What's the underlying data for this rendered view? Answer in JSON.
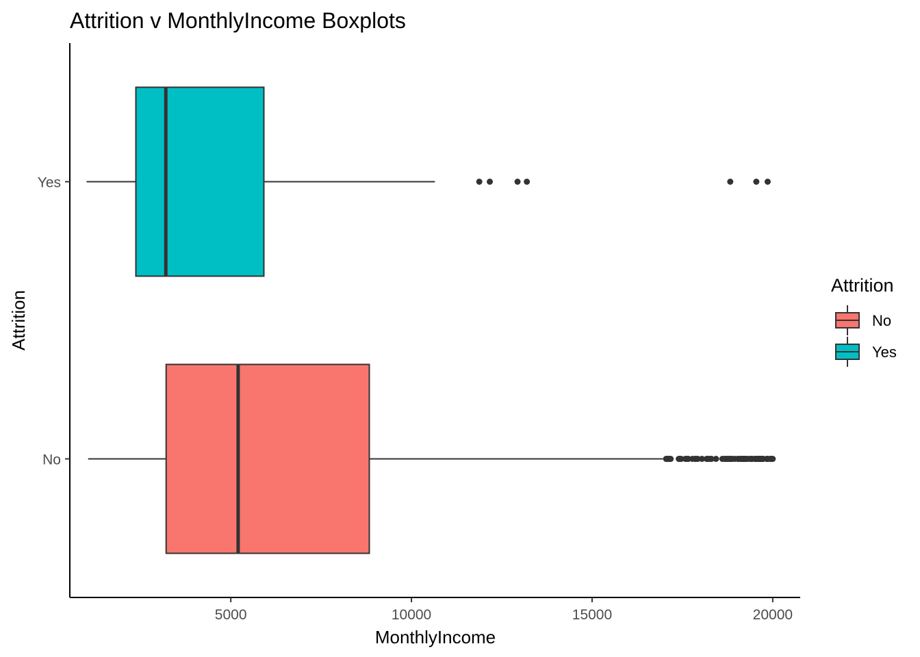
{
  "chart_data": {
    "type": "boxplot",
    "orientation": "horizontal",
    "title": "Attrition v MonthlyIncome Boxplots",
    "xlabel": "MonthlyIncome",
    "ylabel": "Attrition",
    "xlim": [
      545,
      20760
    ],
    "x_ticks": [
      5000,
      10000,
      15000,
      20000
    ],
    "x_tick_labels": [
      "5000",
      "10000",
      "15000",
      "20000"
    ],
    "categories": [
      "No",
      "Yes"
    ],
    "grid": false,
    "legend": {
      "title": "Attrition",
      "position": "right",
      "entries": [
        {
          "label": "No",
          "color": "#F8766D"
        },
        {
          "label": "Yes",
          "color": "#00BFC4"
        }
      ]
    },
    "boxes": [
      {
        "category": "No",
        "color": "#F8766D",
        "whisker_low": 1051,
        "q1": 3211,
        "median": 5204,
        "q3": 8834,
        "whisker_high": 16959,
        "outliers": [
          17048,
          17068,
          17099,
          17123,
          17159,
          17174,
          17399,
          17426,
          17465,
          17584,
          17603,
          17639,
          17665,
          17779,
          17856,
          17861,
          17875,
          17924,
          18041,
          18172,
          18200,
          18213,
          18265,
          18303,
          18430,
          18606,
          18665,
          18711,
          18740,
          18789,
          18824,
          18844,
          18880,
          18947,
          19033,
          19045,
          19094,
          19141,
          19144,
          19187,
          19189,
          19197,
          19232,
          19237,
          19246,
          19272,
          19328,
          19392,
          19406,
          19419,
          19431,
          19502,
          19513,
          19545,
          19566,
          19586,
          19613,
          19626,
          19636,
          19658,
          19665,
          19689,
          19701,
          19717,
          19740,
          19833,
          19845,
          19847,
          19859,
          19926,
          19943,
          19973,
          19999
        ]
      },
      {
        "category": "Yes",
        "color": "#00BFC4",
        "whisker_low": 1009,
        "q1": 2373,
        "median": 3202,
        "q3": 5916,
        "whisker_high": 10650,
        "outliers": [
          11878,
          12169,
          12936,
          13194,
          18824,
          19545,
          19859
        ]
      }
    ]
  }
}
